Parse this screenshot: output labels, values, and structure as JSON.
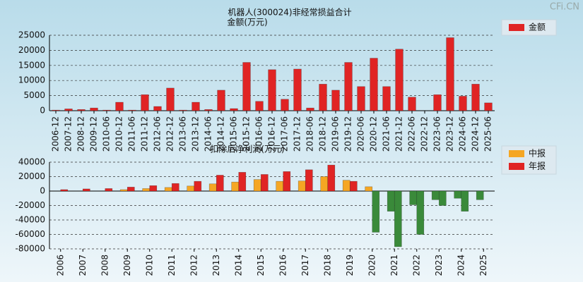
{
  "watermark": "CFi.CN",
  "chart_data": [
    {
      "type": "bar",
      "title": "机器人(300024)非经常损益合计",
      "y_label": "金额(万元)",
      "categories": [
        "2006-12",
        "2007-12",
        "2008-12",
        "2009-12",
        "2010-06",
        "2010-12",
        "2011-06",
        "2011-12",
        "2012-06",
        "2012-12",
        "2013-06",
        "2013-12",
        "2014-06",
        "2014-12",
        "2015-06",
        "2015-12",
        "2016-06",
        "2016-12",
        "2017-06",
        "2017-12",
        "2018-06",
        "2018-12",
        "2019-06",
        "2019-12",
        "2020-06",
        "2020-12",
        "2021-06",
        "2021-12",
        "2022-06",
        "2022-12",
        "2023-06",
        "2023-12",
        "2024-06",
        "2024-12",
        "2025-06"
      ],
      "series": [
        {
          "name": "金额",
          "color": "#e02424",
          "values": [
            200,
            600,
            400,
            900,
            200,
            2800,
            200,
            5300,
            1400,
            7500,
            200,
            2800,
            400,
            6800,
            700,
            16000,
            3100,
            13600,
            3800,
            13800,
            900,
            8800,
            6800,
            16000,
            8000,
            17400,
            8000,
            20400,
            4500,
            null,
            5300,
            24200,
            4800,
            8800,
            2600
          ]
        }
      ],
      "ylim": [
        0,
        25000
      ],
      "yticks": [
        0,
        5000,
        10000,
        15000,
        20000,
        25000
      ],
      "grid": true,
      "legend": "right"
    },
    {
      "type": "bar",
      "y_label": "扣除后净利润(万元)",
      "categories": [
        "2006",
        "2007",
        "2008",
        "2009",
        "2010",
        "2011",
        "2012",
        "2013",
        "2014",
        "2015",
        "2016",
        "2017",
        "2018",
        "2019",
        "2020",
        "2021",
        "2022",
        "2023",
        "2024",
        "2025"
      ],
      "series": [
        {
          "name": "中报",
          "color": "#f5a623",
          "values": [
            null,
            null,
            null,
            2000,
            3500,
            5000,
            7000,
            10000,
            12500,
            16000,
            13500,
            14000,
            20000,
            15000,
            6000,
            -28000,
            -19000,
            -12000,
            -10000,
            -12000
          ]
        },
        {
          "name": "年报",
          "color": "#e02424",
          "values": [
            2000,
            3000,
            3500,
            5500,
            7500,
            10500,
            13500,
            22000,
            26000,
            23000,
            27000,
            29500,
            36000,
            13500,
            -57000,
            -77000,
            -60000,
            -20000,
            -28000,
            null
          ]
        }
      ],
      "negative_color": "#3a8a3a",
      "ylim": [
        -80000,
        40000
      ],
      "yticks": [
        -80000,
        -60000,
        -40000,
        -20000,
        0,
        20000,
        40000
      ],
      "grid": true,
      "legend": "right"
    }
  ]
}
